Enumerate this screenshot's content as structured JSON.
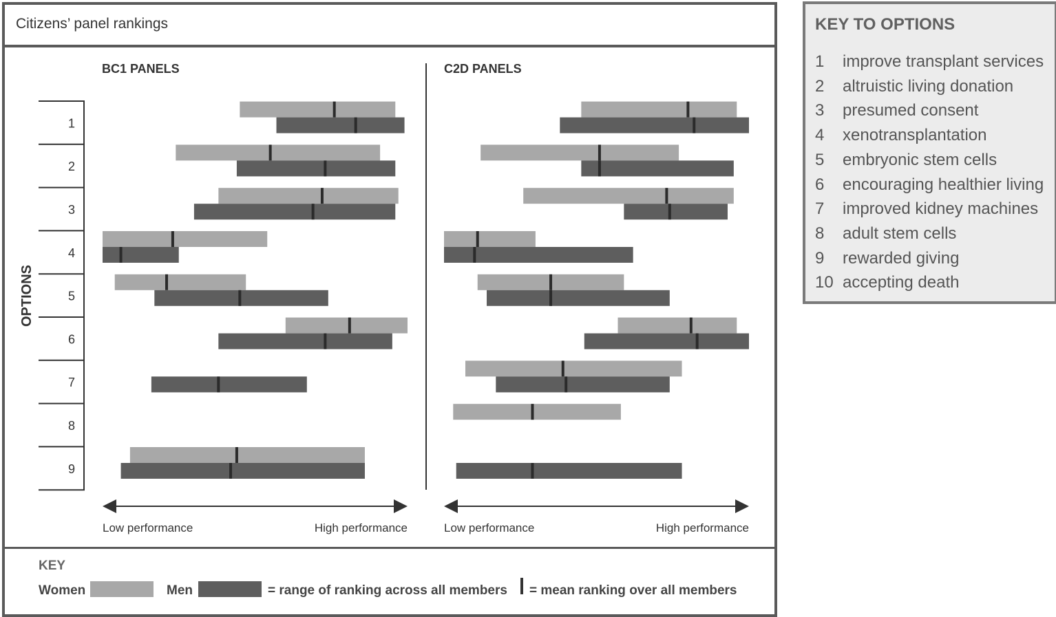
{
  "title": "Citizens’ panel rankings",
  "y_axis_label": "OPTIONS",
  "legend": {
    "key_label": "KEY",
    "women_label": "Women",
    "men_label": "Men",
    "range_text": "= range of ranking across all members",
    "mean_text": "= mean ranking over all members",
    "women_color": "#a8a8a8",
    "men_color": "#5e5e5e"
  },
  "options_key": {
    "title": "KEY TO OPTIONS",
    "items": [
      {
        "num": "1",
        "label": "improve transplant services"
      },
      {
        "num": "2",
        "label": "altruistic living donation"
      },
      {
        "num": "3",
        "label": "presumed consent"
      },
      {
        "num": "4",
        "label": "xenotransplantation"
      },
      {
        "num": "5",
        "label": "embryonic stem cells"
      },
      {
        "num": "6",
        "label": "encouraging healthier living"
      },
      {
        "num": "7",
        "label": "improved kidney machines"
      },
      {
        "num": "8",
        "label": "adult stem cells"
      },
      {
        "num": "9",
        "label": "rewarded giving"
      },
      {
        "num": "10",
        "label": "accepting death"
      }
    ]
  },
  "chart_data": {
    "type": "range-bar",
    "categories": [
      "1",
      "2",
      "3",
      "4",
      "5",
      "6",
      "7",
      "8",
      "9"
    ],
    "x_axis": {
      "low_label": "Low performance",
      "high_label": "High performance",
      "range": [
        0,
        100
      ]
    },
    "panels": [
      {
        "title": "BC1 PANELS",
        "series": [
          {
            "name": "Women",
            "ranges": [
              {
                "option": "1",
                "low": 45,
                "high": 96,
                "mean": 76
              },
              {
                "option": "2",
                "low": 24,
                "high": 91,
                "mean": 55
              },
              {
                "option": "3",
                "low": 38,
                "high": 97,
                "mean": 72
              },
              {
                "option": "4",
                "low": 0,
                "high": 54,
                "mean": 23
              },
              {
                "option": "5",
                "low": 4,
                "high": 47,
                "mean": 21
              },
              {
                "option": "6",
                "low": 60,
                "high": 100,
                "mean": 81
              },
              {
                "option": "8",
                "low": null,
                "high": null,
                "mean": null
              },
              {
                "option": "9",
                "low": 9,
                "high": 86,
                "mean": 44
              }
            ]
          },
          {
            "name": "Men",
            "ranges": [
              {
                "option": "1",
                "low": 57,
                "high": 99,
                "mean": 83
              },
              {
                "option": "2",
                "low": 44,
                "high": 96,
                "mean": 73
              },
              {
                "option": "3",
                "low": 30,
                "high": 96,
                "mean": 69
              },
              {
                "option": "4",
                "low": 0,
                "high": 25,
                "mean": 6
              },
              {
                "option": "5",
                "low": 17,
                "high": 74,
                "mean": 45
              },
              {
                "option": "6",
                "low": 38,
                "high": 95,
                "mean": 73
              },
              {
                "option": "7",
                "low": 16,
                "high": 67,
                "mean": 38
              },
              {
                "option": "9",
                "low": 6,
                "high": 86,
                "mean": 42
              }
            ]
          }
        ]
      },
      {
        "title": "C2D PANELS",
        "series": [
          {
            "name": "Women",
            "ranges": [
              {
                "option": "1",
                "low": 45,
                "high": 96,
                "mean": 80
              },
              {
                "option": "2",
                "low": 12,
                "high": 77,
                "mean": 51
              },
              {
                "option": "3",
                "low": 26,
                "high": 95,
                "mean": 73
              },
              {
                "option": "4",
                "low": 0,
                "high": 30,
                "mean": 11
              },
              {
                "option": "5",
                "low": 11,
                "high": 59,
                "mean": 35
              },
              {
                "option": "6",
                "low": 57,
                "high": 96,
                "mean": 81
              },
              {
                "option": "7",
                "low": 7,
                "high": 78,
                "mean": 39
              },
              {
                "option": "8",
                "low": 3,
                "high": 58,
                "mean": 29
              }
            ]
          },
          {
            "name": "Men",
            "ranges": [
              {
                "option": "1",
                "low": 38,
                "high": 100,
                "mean": 82
              },
              {
                "option": "2",
                "low": 45,
                "high": 95,
                "mean": 51
              },
              {
                "option": "3",
                "low": 59,
                "high": 93,
                "mean": 74
              },
              {
                "option": "4",
                "low": 0,
                "high": 62,
                "mean": 10
              },
              {
                "option": "5",
                "low": 14,
                "high": 74,
                "mean": 35
              },
              {
                "option": "6",
                "low": 46,
                "high": 100,
                "mean": 83
              },
              {
                "option": "7",
                "low": 17,
                "high": 74,
                "mean": 40
              },
              {
                "option": "9",
                "low": 4,
                "high": 78,
                "mean": 29
              }
            ]
          }
        ]
      }
    ]
  }
}
